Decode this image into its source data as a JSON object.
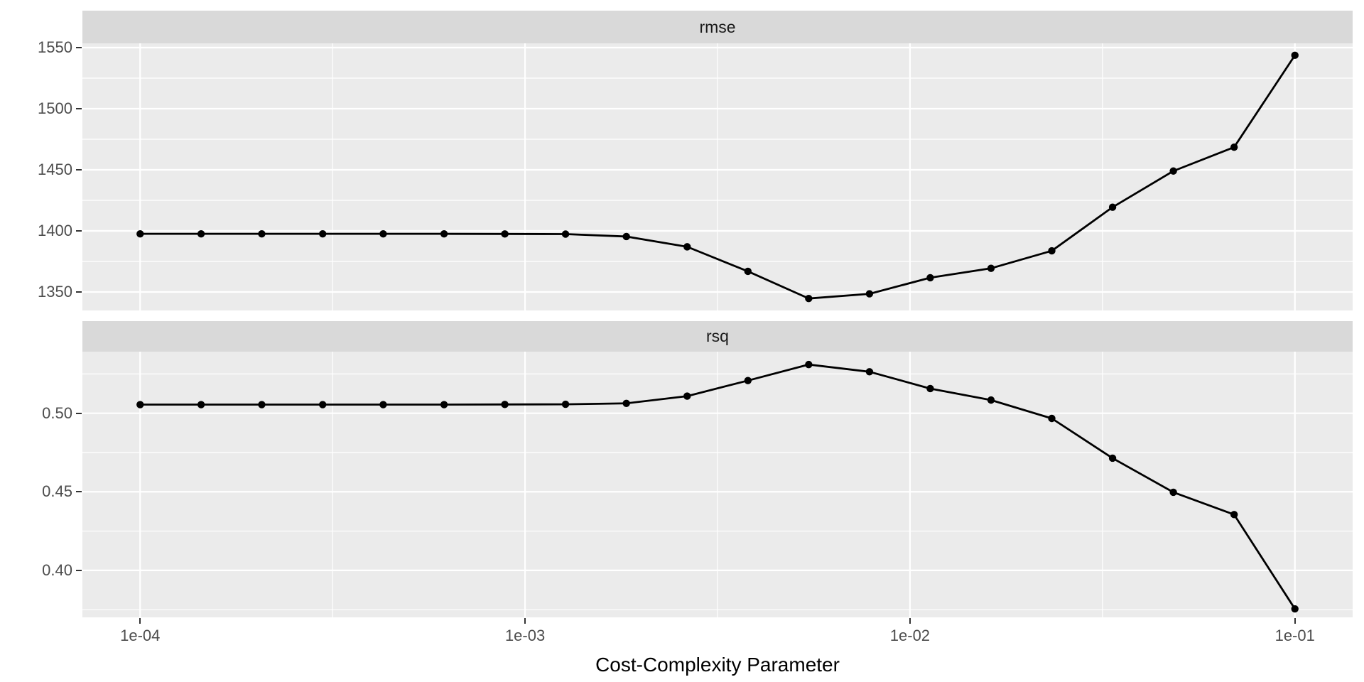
{
  "chart_data": {
    "type": "line",
    "title": "",
    "marker": "point",
    "legend": "none",
    "grid": "on",
    "colors": {
      "series_line": "#000000",
      "point_fill": "#000000",
      "panel_background": "#EBEBEB",
      "strip_background": "#D9D9D9",
      "grid_major": "#FFFFFF",
      "grid_minor": "#FFFFFF",
      "tick_text": "#4D4D4D",
      "strip_text": "#1A1A1A",
      "axis_title_text": "#000000",
      "tick_mark": "#333333"
    },
    "x_axis": {
      "label": "Cost-Complexity Parameter",
      "scale": "log10",
      "tick_labels": [
        "1e-04",
        "1e-03",
        "1e-02",
        "1e-01"
      ],
      "tick_values": [
        0.0001,
        0.001,
        0.01,
        0.1
      ],
      "minor_tick_values": [
        0.00031623,
        0.0031623,
        0.031623
      ],
      "domain_log10": [
        -4.15,
        -0.85
      ]
    },
    "x": [
      0.0001,
      0.000144,
      0.000207,
      0.000298,
      0.000428,
      0.000616,
      0.000886,
      0.001274,
      0.001833,
      0.002637,
      0.003793,
      0.005456,
      0.007848,
      0.011288,
      0.016238,
      0.023357,
      0.033598,
      0.048329,
      0.069519,
      0.1
    ],
    "facets": [
      {
        "label": "rmse",
        "y_tick_labels": [
          "1350",
          "1400",
          "1450",
          "1500",
          "1550"
        ],
        "y_tick_values": [
          1350,
          1400,
          1450,
          1500,
          1550
        ],
        "y_minor_values": [
          1375,
          1425,
          1475,
          1525
        ],
        "y_domain": [
          1334.9,
          1553.5
        ],
        "values": [
          1397.6,
          1397.6,
          1397.6,
          1397.6,
          1397.6,
          1397.6,
          1397.5,
          1397.4,
          1395.4,
          1387.0,
          1366.9,
          1344.7,
          1348.5,
          1361.7,
          1369.4,
          1383.7,
          1419.4,
          1449.0,
          1468.5,
          1543.7
        ]
      },
      {
        "label": "rsq",
        "y_tick_labels": [
          "0.40",
          "0.45",
          "0.50"
        ],
        "y_tick_values": [
          0.4,
          0.45,
          0.5
        ],
        "y_minor_values": [
          0.375,
          0.425,
          0.475,
          0.525
        ],
        "y_domain": [
          0.3701,
          0.5392
        ],
        "values": [
          0.5055,
          0.5055,
          0.5055,
          0.5055,
          0.5055,
          0.5055,
          0.5056,
          0.5057,
          0.5063,
          0.5109,
          0.5208,
          0.531,
          0.5264,
          0.5157,
          0.5084,
          0.4967,
          0.4714,
          0.4497,
          0.4355,
          0.3755
        ]
      }
    ]
  }
}
